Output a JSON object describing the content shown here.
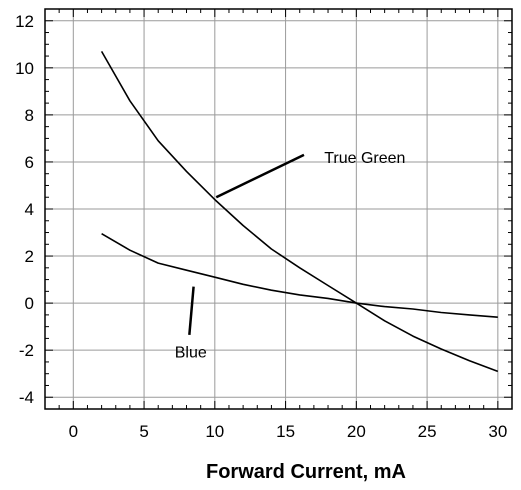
{
  "chart_data": {
    "type": "line",
    "title": "",
    "xlabel": "Forward Current, mA",
    "ylabel": "",
    "xlim": [
      -2,
      31
    ],
    "ylim": [
      -4.5,
      12.5
    ],
    "x_ticks": [
      0,
      5,
      10,
      15,
      20,
      25,
      30
    ],
    "x_tick_labels": [
      "0",
      "5",
      "10",
      "15",
      "20",
      "25",
      "30"
    ],
    "y_ticks": [
      -4,
      -2,
      0,
      2,
      4,
      6,
      8,
      10,
      12
    ],
    "y_tick_labels": [
      "-4",
      "-2",
      "0",
      "2",
      "4",
      "6",
      "8",
      "10",
      "12"
    ],
    "grid": true,
    "series": [
      {
        "name": "True Green",
        "x": [
          2,
          4,
          6,
          8,
          10,
          12,
          14,
          16,
          18,
          20,
          22,
          24,
          26,
          28,
          30
        ],
        "y": [
          10.7,
          8.6,
          6.9,
          5.6,
          4.4,
          3.3,
          2.3,
          1.5,
          0.75,
          0.0,
          -0.75,
          -1.4,
          -1.95,
          -2.45,
          -2.9
        ]
      },
      {
        "name": "Blue",
        "x": [
          2,
          4,
          6,
          8,
          10,
          12,
          14,
          16,
          18,
          20,
          22,
          24,
          26,
          28,
          30
        ],
        "y": [
          2.95,
          2.25,
          1.7,
          1.4,
          1.1,
          0.8,
          0.55,
          0.35,
          0.2,
          0.0,
          -0.15,
          -0.25,
          -0.4,
          -0.5,
          -0.6
        ]
      }
    ],
    "annotations": [
      {
        "text": "True Green",
        "x": 20.6,
        "y": 6.2,
        "pointer_from": [
          16.3,
          6.3
        ],
        "pointer_to": [
          10.1,
          4.5
        ]
      },
      {
        "text": "Blue",
        "x": 8.3,
        "y": -2.05,
        "pointer_from": [
          8.2,
          -1.35
        ],
        "pointer_to": [
          8.5,
          0.7
        ]
      }
    ]
  }
}
